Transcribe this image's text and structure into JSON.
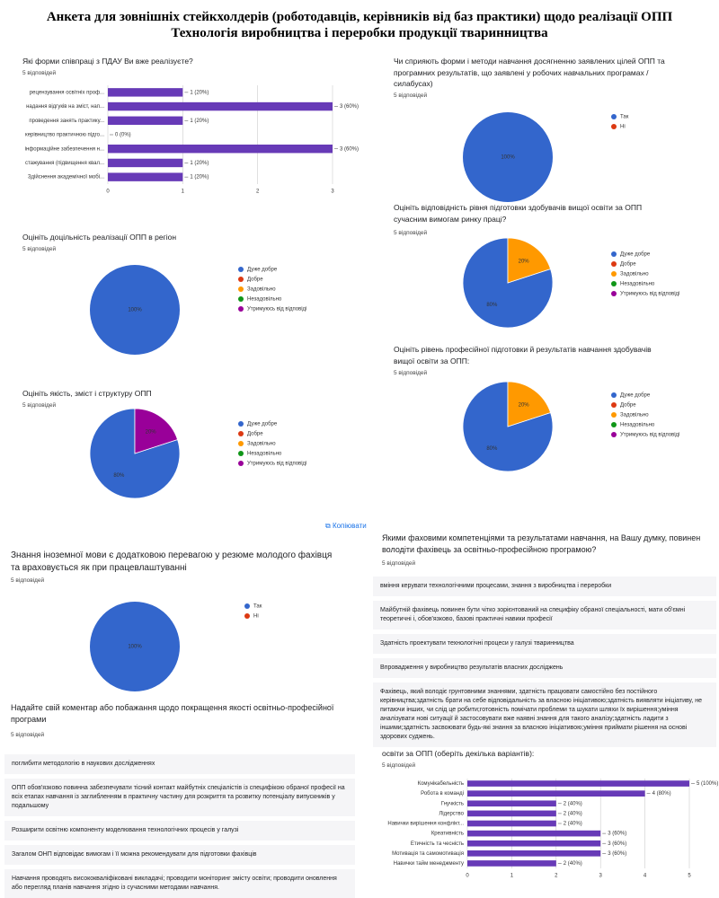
{
  "header": {
    "title": "Анкета для зовнішніх стейкхолдерів (роботодавців, керівників від баз практики) щодо реалізації ОПП Технологія виробництва і переробки продукції тваринництва"
  },
  "copy_button": "Копіювати",
  "chart_data": [
    {
      "type": "bar",
      "title": "Які форми співпраці з ПДАУ Ви вже реалізуєте?",
      "subtitle": "5 відповідей",
      "categories": [
        "рецензування освітніх проф...",
        "надання відгуків на зміст, нап...",
        "проведення занять практику...",
        "керівництво практичною підго...",
        "інформаційне забезпечення н...",
        "стажування (підвищення квал...",
        "Здійснення академічної мобі..."
      ],
      "values": [
        1,
        3,
        1,
        0,
        3,
        1,
        1
      ],
      "value_labels": [
        "1 (20%)",
        "3 (60%)",
        "1 (20%)",
        "0 (0%)",
        "3 (60%)",
        "1 (20%)",
        "1 (20%)"
      ],
      "color": "#673ab7",
      "xlim": [
        0,
        3
      ],
      "xticks": [
        0,
        1,
        2,
        3
      ],
      "grid": true
    },
    {
      "type": "pie",
      "title": "Чи сприяють форми і методи навчання досягненню заявлених цілей ОПП та програмних результатів, що заявлені у робочих навчальних програмах / силабусах)",
      "subtitle": "5 відповідей",
      "categories": [
        "Так",
        "Ні"
      ],
      "values": [
        100,
        0
      ],
      "value_labels": [
        "100%",
        null
      ],
      "colors": [
        "#3366cc",
        "#dc3912"
      ]
    },
    {
      "type": "pie",
      "title": "Оцініть доцільність реалізації ОПП в регіон",
      "subtitle": "5 відповідей",
      "categories": [
        "Дуже добре",
        "Добре",
        "Задовільно",
        "Незадовільно",
        "Утримуюсь від відповіді"
      ],
      "values": [
        100,
        0,
        0,
        0,
        0
      ],
      "value_labels": [
        "100%",
        null,
        null,
        null,
        null
      ],
      "colors": [
        "#3366cc",
        "#dc3912",
        "#ff9900",
        "#109618",
        "#990099"
      ]
    },
    {
      "type": "pie",
      "title": "Оцініть відповідність рівня підготовки здобувачів вищої освіти за ОПП сучасним вимогам ринку праці?",
      "subtitle": "5 відповідей",
      "categories": [
        "Дуже добре",
        "Добре",
        "Задовільно",
        "Незадовільно",
        "Утримуюсь від відповіді"
      ],
      "values": [
        80,
        0,
        20,
        0,
        0
      ],
      "value_labels": [
        "80%",
        null,
        "20%",
        null,
        null
      ],
      "colors": [
        "#3366cc",
        "#dc3912",
        "#ff9900",
        "#109618",
        "#990099"
      ]
    },
    {
      "type": "pie",
      "title": "Оцініть рівень професійної підготовки й результатів навчання здобувачів вищої освіти за ОПП:",
      "subtitle": "5 відповідей",
      "categories": [
        "Дуже добре",
        "Добре",
        "Задовільно",
        "Незадовільно",
        "Утримуюсь від відповіді"
      ],
      "values": [
        80,
        0,
        20,
        0,
        0
      ],
      "value_labels": [
        "80%",
        null,
        "20%",
        null,
        null
      ],
      "colors": [
        "#3366cc",
        "#dc3912",
        "#ff9900",
        "#109618",
        "#990099"
      ]
    },
    {
      "type": "pie",
      "title": "Оцініть якість, зміст і структуру ОПП",
      "subtitle": "5 відповідей",
      "categories": [
        "Дуже добре",
        "Добре",
        "Задовільно",
        "Незадовільно",
        "Утримуюсь від відповіді"
      ],
      "values": [
        80,
        0,
        0,
        0,
        20
      ],
      "value_labels": [
        "80%",
        null,
        null,
        null,
        "20%"
      ],
      "colors": [
        "#3366cc",
        "#dc3912",
        "#ff9900",
        "#109618",
        "#990099"
      ]
    },
    {
      "type": "pie",
      "title": "Знання іноземної мови є додатковою перевагою у резюме молодого фахівця та враховується як при працевлаштуванні",
      "subtitle": "5 відповідей",
      "categories": [
        "Так",
        "Ні"
      ],
      "values": [
        100,
        0
      ],
      "value_labels": [
        "100%",
        null
      ],
      "colors": [
        "#3366cc",
        "#dc3912"
      ]
    },
    {
      "type": "bar",
      "title": "Які, на Вашу думку, «м'які навички» (soft skills) є найважливішими для здобувача освіти за ОПП (оберіть декілька варіантів):",
      "subtitle": "5 відповідей",
      "categories": [
        "Комунікабельність",
        "Робота в команді",
        "Гнучкість",
        "Лідерство",
        "Навички вирішення конфлікт...",
        "Креативність",
        "Етичність та чесність",
        "Мотивація та самомотивація",
        "Навички тайм менеджменту"
      ],
      "values": [
        5,
        4,
        2,
        2,
        2,
        3,
        3,
        3,
        2
      ],
      "value_labels": [
        "5 (100%)",
        "4 (80%)",
        "2 (40%)",
        "2 (40%)",
        "2 (40%)",
        "3 (60%)",
        "3 (60%)",
        "3 (60%)",
        "2 (40%)"
      ],
      "color": "#673ab7",
      "xlim": [
        0,
        5
      ],
      "xticks": [
        0,
        1,
        2,
        3,
        4,
        5
      ],
      "grid": true
    }
  ],
  "text_responses": [
    {
      "title": "Якими фаховими компетенціями та результатами навчання, на Вашу думку, повинен володіти фахівець за освітньо-професійною програмою?",
      "subtitle": "5 відповідей",
      "responses": [
        "вміння керувати технологічними процесами, знання з виробництва і переробки",
        "Майбутній фахівець повинен бути чітко зорієнтований на специфіку обраної спеціальності, мати об'ємні теоретичні і, обов'язково, базові практичні навики професії",
        "Здатність проектувати технологічні процеси у галузі тваринництва",
        "Впровадження у виробництво результатів власних досліджень",
        "Фахівець, який володіє грунтовними знаннями, здатність працювати самостійно без постійного керівництва;здатність брати на себе відповідальність за власною ініціативою;здатність виявляти ініціативу, не питаючи інших, чи слід це робити;готовність помічати проблеми та шукати шляхи їх вирішення;уміння аналізувати нові ситуації й застосовувати вже наявні знання для такого аналізу;здатність ладити з іншими;здатність засвоювати будь-які знання за власною ініціативою;уміння приймати рішення на основі здорових суджень."
      ]
    },
    {
      "title": "Надайте свій коментар або побажання щодо покращення якості освітньо-професійної програми",
      "subtitle": "5 відповідей",
      "responses": [
        "поглибити методологію в наукових дослідженнях",
        "ОПП обов'язково повинна забезпечувати тісний контакт майбутніх спеціалістів із специфікою обраної професії на всіх етапах навчання із заглибленням в практичну частину для розкриття та розвитку потенціалу випускників у подальшому",
        "Розширити освітню компоненту моделювання технологічних процесів у галузі",
        "Загалом ОНП відповідає вимогам і її можна рекомендувати для підготовки фахівців",
        "Навчання проводять висококваліфіковані викладачі; проводити моніторинг змісту освіти; проводити оновлення або перегляд планів навчання згідно із сучасними методами навчання."
      ]
    }
  ]
}
